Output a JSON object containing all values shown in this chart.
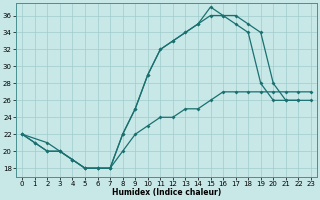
{
  "bg_color": "#c8e8e8",
  "line_color": "#1a7070",
  "xlabel": "Humidex (Indice chaleur)",
  "xlim": [
    -0.5,
    23.5
  ],
  "ylim": [
    17.0,
    37.5
  ],
  "yticks": [
    18,
    20,
    22,
    24,
    26,
    28,
    30,
    32,
    34,
    36
  ],
  "xticks": [
    0,
    1,
    2,
    3,
    4,
    5,
    6,
    7,
    8,
    9,
    10,
    11,
    12,
    13,
    14,
    15,
    16,
    17,
    18,
    19,
    20,
    21,
    22,
    23
  ],
  "curve1_x": [
    0,
    1,
    2,
    3,
    4,
    5,
    6,
    7,
    8,
    9,
    10,
    11,
    12,
    13,
    14,
    15,
    16,
    17,
    18,
    19,
    20,
    21,
    22
  ],
  "curve1_y": [
    22,
    21,
    20,
    20,
    19,
    18,
    18,
    18,
    22,
    25,
    29,
    32,
    33,
    34,
    35,
    37,
    36,
    35,
    34,
    28,
    26,
    26,
    26
  ],
  "curve2_x": [
    0,
    1,
    2,
    3,
    4,
    5,
    6,
    7,
    8,
    9,
    10,
    11,
    12,
    13,
    14,
    15,
    16,
    17,
    18,
    19,
    20,
    21,
    22,
    23
  ],
  "curve2_y": [
    22,
    21,
    20,
    20,
    19,
    18,
    18,
    18,
    22,
    25,
    29,
    32,
    33,
    34,
    35,
    36,
    36,
    36,
    35,
    34,
    28,
    26,
    26,
    26
  ],
  "curve3_x": [
    0,
    2,
    3,
    4,
    5,
    6,
    7,
    8,
    9,
    10,
    11,
    12,
    13,
    14,
    15,
    16,
    17,
    18,
    19,
    20,
    21,
    22,
    23
  ],
  "curve3_y": [
    22,
    21,
    20,
    19,
    18,
    18,
    18,
    20,
    22,
    23,
    24,
    24,
    25,
    25,
    26,
    27,
    27,
    27,
    27,
    27,
    27,
    27,
    27
  ]
}
